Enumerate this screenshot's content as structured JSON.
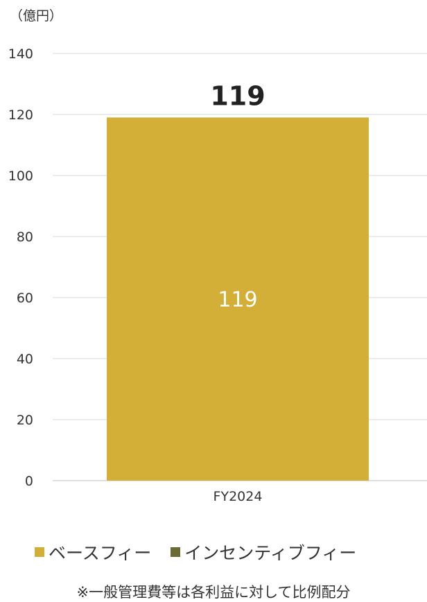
{
  "unit_label": "（億円）",
  "chart_data": {
    "type": "bar",
    "stacked": true,
    "categories": [
      "FY2024"
    ],
    "series": [
      {
        "name": "ベースフィー",
        "values": [
          119
        ],
        "color": "#D3AF38"
      },
      {
        "name": "インセンティブフィー",
        "values": [
          0
        ],
        "color": "#6B6B35"
      }
    ],
    "totals": [
      119
    ],
    "data_labels": [
      "119"
    ],
    "ylim": [
      0,
      140
    ],
    "yticks": [
      0,
      20,
      40,
      60,
      80,
      100,
      120,
      140
    ],
    "grid": true,
    "legend_position": "bottom"
  },
  "note": "※一般管理費等は各利益に対して比例配分"
}
